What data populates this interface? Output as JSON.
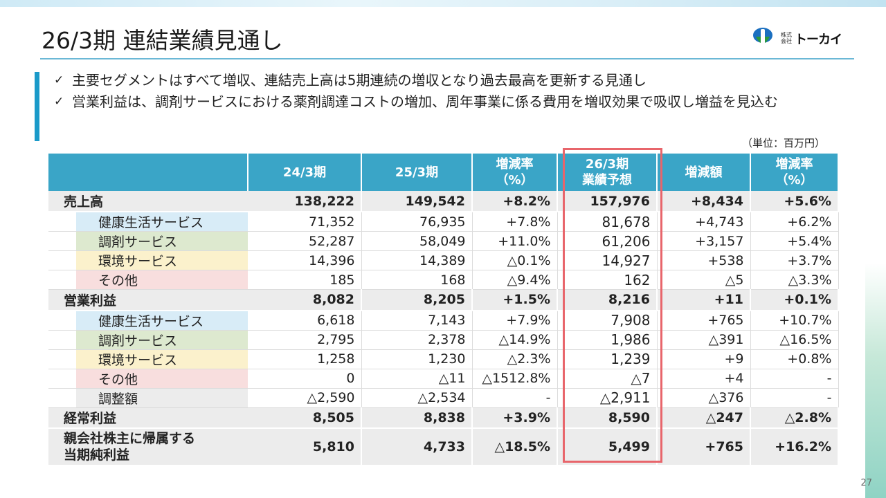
{
  "title": "26/3期 連結業績見通し",
  "logo": {
    "small": "株式\n会社",
    "name": "トーカイ",
    "accent_blue": "#1a6fc0",
    "accent_green": "#2b9a3a"
  },
  "bullets": [
    "主要セグメントはすべて増収、連結売上高は5期連続の増収となり過去最高を更新する見通し",
    "営業利益は、調剤サービスにおける薬剤調達コストの増加、周年事業に係る費用を増収効果で吸収し増益を見込む"
  ],
  "bullet_mark": "✓",
  "unit": "（単位：百万円）",
  "table": {
    "headers": [
      "",
      "24/3期",
      "25/3期",
      "増減率\n（%）",
      "26/3期\n業績予想",
      "増減額",
      "増減率\n（%）"
    ],
    "rows": [
      {
        "type": "main",
        "label": "売上高",
        "values": [
          "138,222",
          "149,542",
          "+8.2%",
          "157,976",
          "+8,434",
          "+5.6%"
        ]
      },
      {
        "type": "sub",
        "seg": "health",
        "label": "健康生活サービス",
        "values": [
          "71,352",
          "76,935",
          "+7.8%",
          "81,678",
          "+4,743",
          "+6.2%"
        ]
      },
      {
        "type": "sub",
        "seg": "pharma",
        "label": "調剤サービス",
        "values": [
          "52,287",
          "58,049",
          "+11.0%",
          "61,206",
          "+3,157",
          "+5.4%"
        ]
      },
      {
        "type": "sub",
        "seg": "env",
        "label": "環境サービス",
        "values": [
          "14,396",
          "14,389",
          "△0.1%",
          "14,927",
          "+538",
          "+3.7%"
        ]
      },
      {
        "type": "sub",
        "seg": "other",
        "label": "その他",
        "values": [
          "185",
          "168",
          "△9.4%",
          "162",
          "△5",
          "△3.3%"
        ]
      },
      {
        "type": "main",
        "label": "営業利益",
        "values": [
          "8,082",
          "8,205",
          "+1.5%",
          "8,216",
          "+11",
          "+0.1%"
        ]
      },
      {
        "type": "sub",
        "seg": "health",
        "label": "健康生活サービス",
        "values": [
          "6,618",
          "7,143",
          "+7.9%",
          "7,908",
          "+765",
          "+10.7%"
        ]
      },
      {
        "type": "sub",
        "seg": "pharma",
        "label": "調剤サービス",
        "values": [
          "2,795",
          "2,378",
          "△14.9%",
          "1,986",
          "△391",
          "△16.5%"
        ]
      },
      {
        "type": "sub",
        "seg": "env",
        "label": "環境サービス",
        "values": [
          "1,258",
          "1,230",
          "△2.3%",
          "1,239",
          "+9",
          "+0.8%"
        ]
      },
      {
        "type": "sub",
        "seg": "other",
        "label": "その他",
        "values": [
          "0",
          "△11",
          "△1512.8%",
          "△7",
          "+4",
          "-"
        ]
      },
      {
        "type": "sub",
        "seg": "adjust",
        "label": "調整額",
        "values": [
          "△2,590",
          "△2,534",
          "-",
          "△2,911",
          "△376",
          "-"
        ]
      },
      {
        "type": "main",
        "label": "経常利益",
        "values": [
          "8,505",
          "8,838",
          "+3.9%",
          "8,590",
          "△247",
          "△2.8%"
        ]
      },
      {
        "type": "main",
        "tall": true,
        "label": "親会社株主に帰属する\n当期純利益",
        "values": [
          "5,810",
          "4,733",
          "△18.5%",
          "5,499",
          "+765",
          "+16.2%"
        ]
      }
    ]
  },
  "highlight_color": "#e8656b",
  "header_color": "#3aa5c7",
  "page_number": "27"
}
